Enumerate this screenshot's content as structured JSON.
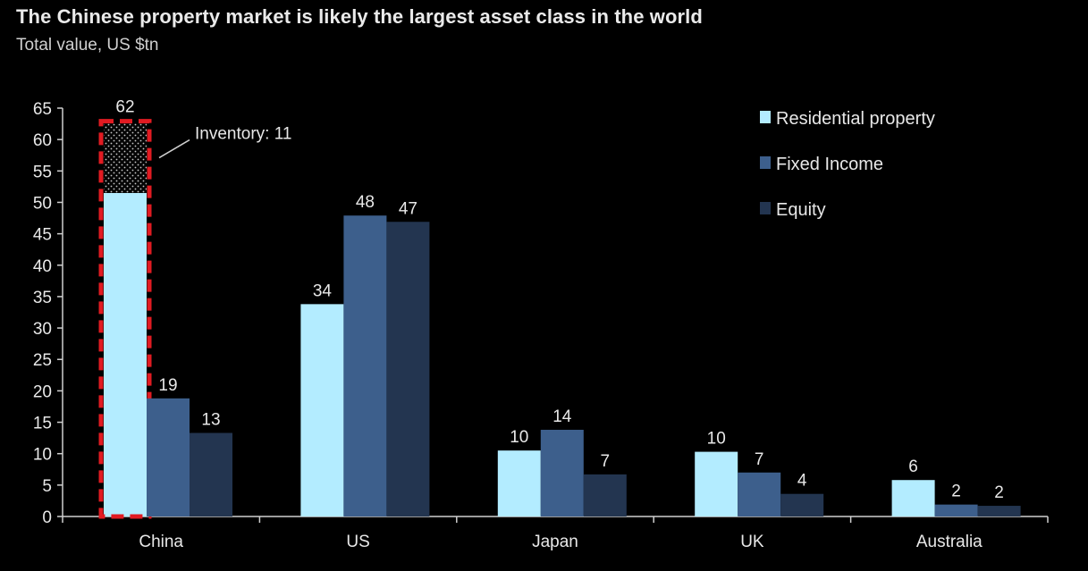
{
  "chart_data": {
    "type": "bar",
    "title": "The Chinese property market is likely the largest asset class in the world",
    "subtitle": "Total value, US $tn",
    "categories": [
      "China",
      "US",
      "Japan",
      "UK",
      "Australia"
    ],
    "series": [
      {
        "name": "Residential property",
        "values": [
          62,
          34,
          10,
          10,
          6
        ],
        "color": "#b3ecff"
      },
      {
        "name": "Fixed Income",
        "values": [
          19,
          48,
          14,
          7,
          2
        ],
        "color": "#3d5f8c"
      },
      {
        "name": "Equity",
        "values": [
          13,
          47,
          7,
          4,
          2
        ],
        "color": "#233550"
      }
    ],
    "bar_heights": [
      [
        51.5,
        33.8,
        10.5,
        10.3,
        5.8
      ],
      [
        18.8,
        47.9,
        13.8,
        7.0,
        1.9
      ],
      [
        13.3,
        46.9,
        6.7,
        3.6,
        1.7
      ]
    ],
    "inventory": {
      "label": "Inventory: 11",
      "value": 11,
      "category": "China"
    },
    "ylim": [
      0,
      65
    ],
    "yticks": [
      0,
      5,
      10,
      15,
      20,
      25,
      30,
      35,
      40,
      45,
      50,
      55,
      60,
      65
    ],
    "xlabel": "",
    "ylabel": "",
    "legend_position": "top-right",
    "grid": false,
    "highlight_color": "#e11b22"
  }
}
